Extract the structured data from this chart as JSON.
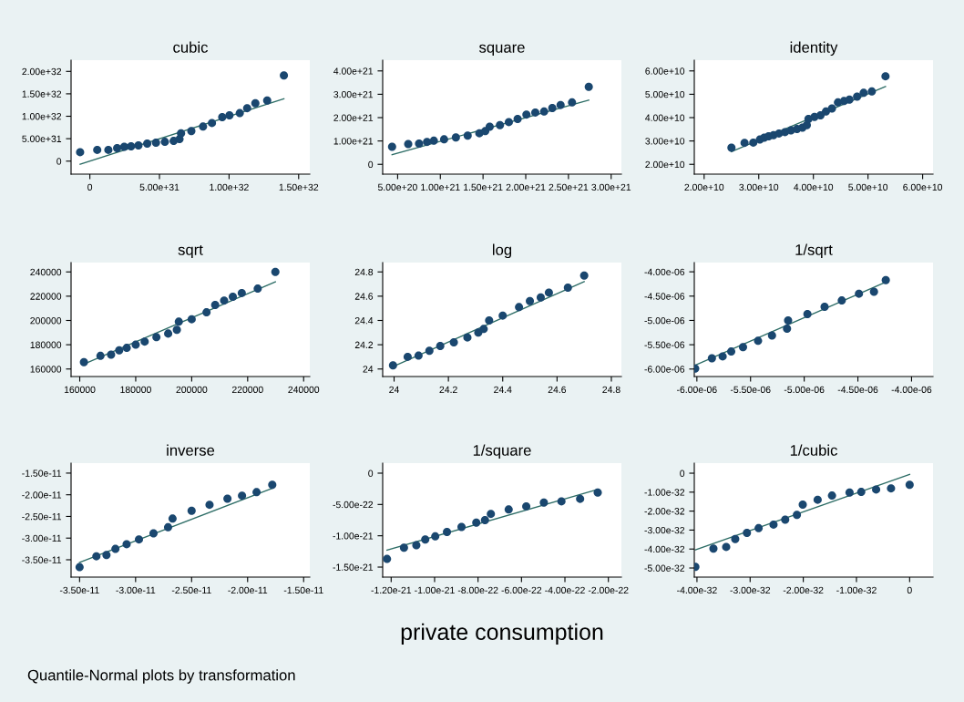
{
  "chart_data": [
    {
      "type": "scatter",
      "title": "cubic",
      "xlim": [
        -1.35e+31,
        1.58e+32
      ],
      "ylim": [
        -2.9e+31,
        2.25e+32
      ],
      "xticks": [
        0,
        {
          "value": 5e+31,
          "label": "5.00e+31"
        },
        {
          "value": 1e+32,
          "label": "1.00e+32"
        },
        {
          "value": 1.5e+32,
          "label": "1.50e+32"
        }
      ],
      "yticks": [
        0,
        {
          "value": 5e+31,
          "label": "5.00e+31"
        },
        {
          "value": 1e+32,
          "label": "1.00e+32"
        },
        {
          "value": 1.5e+32,
          "label": "1.50e+32"
        },
        {
          "value": 2e+32,
          "label": "2.00e+32"
        }
      ],
      "series": [
        {
          "marker": "circle",
          "color": "#1a476f",
          "x": [
            -7e+30,
            5.3e+30,
            1.33e+31,
            1.96e+31,
            2.47e+31,
            2.96e+31,
            3.49e+31,
            4.12e+31,
            4.75e+31,
            5.39e+31,
            6.02e+31,
            6.44e+31,
            6.55e+31,
            7.29e+31,
            8.13e+31,
            8.77e+31,
            9.51e+31,
            1.003e+32,
            1.077e+32,
            1.13e+32,
            1.189e+32,
            1.274e+32,
            1.394e+32
          ],
          "values": [
            2e+31,
            2.5e+31,
            2.5e+31,
            2.9e+31,
            3.2e+31,
            3.3e+31,
            3.5e+31,
            3.9e+31,
            4.1e+31,
            4.3e+31,
            4.5e+31,
            4.9e+31,
            6.2e+31,
            6.7e+31,
            7.7e+31,
            8.5e+31,
            9.8e+31,
            1.02e+32,
            1.07e+32,
            1.18e+32,
            1.29e+32,
            1.35e+32,
            1.91e+32
          ]
        },
        {
          "type": "line",
          "color": "#2d6d66",
          "x": [
            -7e+30,
            1.394e+32
          ],
          "values": [
            -7e+30,
            1.39e+32
          ]
        }
      ]
    },
    {
      "type": "scatter",
      "title": "square",
      "xlim": [
        3.25e+20,
        3.12e+21
      ],
      "ylim": [
        -4.2e+20,
        4.46e+21
      ],
      "xticks": [
        {
          "value": 5e+20,
          "label": "5.00e+20"
        },
        {
          "value": 1e+21,
          "label": "1.00e+21"
        },
        {
          "value": 1.5e+21,
          "label": "1.50e+21"
        },
        {
          "value": 2e+21,
          "label": "2.00e+21"
        },
        {
          "value": 2.5e+21,
          "label": "2.50e+21"
        },
        {
          "value": 3e+21,
          "label": "3.00e+21"
        }
      ],
      "yticks": [
        0,
        {
          "value": 1e+21,
          "label": "1.00e+21"
        },
        {
          "value": 2e+21,
          "label": "2.00e+21"
        },
        {
          "value": 3e+21,
          "label": "3.00e+21"
        },
        {
          "value": 4e+21,
          "label": "4.00e+21"
        }
      ],
      "series": [
        {
          "marker": "circle",
          "color": "#1a476f",
          "x": [
            4.35e+20,
            6.24e+20,
            7.51e+20,
            8.44e+20,
            9.24e+20,
            1.044e+21,
            1.182e+21,
            1.32e+21,
            1.457e+21,
            1.526e+21,
            1.578e+21,
            1.698e+21,
            1.802e+21,
            1.905e+21,
            2.008e+21,
            2.112e+21,
            2.215e+21,
            2.311e+21,
            2.408e+21,
            2.542e+21,
            2.738e+21
          ],
          "values": [
            7.5e+20,
            8.7e+20,
            8.9e+20,
            9.6e+20,
            1.01e+21,
            1.07e+21,
            1.15e+21,
            1.23e+21,
            1.33e+21,
            1.42e+21,
            1.61e+21,
            1.68e+21,
            1.81e+21,
            1.94e+21,
            2.13e+21,
            2.22e+21,
            2.26e+21,
            2.41e+21,
            2.54e+21,
            2.65e+21,
            3.32e+21
          ]
        },
        {
          "type": "line",
          "color": "#2d6d66",
          "x": [
            4.35e+20,
            2.738e+21
          ],
          "values": [
            4.1e+20,
            2.75e+21
          ]
        }
      ]
    },
    {
      "type": "scatter",
      "title": "identity",
      "xlim": [
        18200000000.0,
        61900000000.0
      ],
      "ylim": [
        15800000000.0,
        64600000000.0
      ],
      "xticks": [
        {
          "value": 20000000000.0,
          "label": "2.00e+10"
        },
        {
          "value": 30000000000.0,
          "label": "3.00e+10"
        },
        {
          "value": 40000000000.0,
          "label": "4.00e+10"
        },
        {
          "value": 50000000000.0,
          "label": "5.00e+10"
        },
        {
          "value": 60000000000.0,
          "label": "6.00e+10"
        }
      ],
      "yticks": [
        {
          "value": 20000000000.0,
          "label": "2.00e+10"
        },
        {
          "value": 30000000000.0,
          "label": "3.00e+10"
        },
        {
          "value": 40000000000.0,
          "label": "4.00e+10"
        },
        {
          "value": 50000000000.0,
          "label": "5.00e+10"
        },
        {
          "value": 60000000000.0,
          "label": "6.00e+10"
        }
      ],
      "series": [
        {
          "marker": "circle",
          "color": "#1a476f",
          "x": [
            25000000000.0,
            27400000000.0,
            29000000000.0,
            30200000000.0,
            31000000000.0,
            31800000000.0,
            32700000000.0,
            33700000000.0,
            34800000000.0,
            35900000000.0,
            37000000000.0,
            38000000000.0,
            38800000000.0,
            39100000000.0,
            40200000000.0,
            41300000000.0,
            42300000000.0,
            43400000000.0,
            44500000000.0,
            45600000000.0,
            46600000000.0,
            48000000000.0,
            49200000000.0,
            50700000000.0,
            53200000000.0
          ],
          "values": [
            27100000000.0,
            29200000000.0,
            29300000000.0,
            30600000000.0,
            31400000000.0,
            32000000000.0,
            32500000000.0,
            33200000000.0,
            33800000000.0,
            34500000000.0,
            35100000000.0,
            35700000000.0,
            36800000000.0,
            39400000000.0,
            40300000000.0,
            41000000000.0,
            42600000000.0,
            43900000000.0,
            46500000000.0,
            47100000000.0,
            47700000000.0,
            49000000000.0,
            50600000000.0,
            51200000000.0,
            57700000000.0
          ]
        },
        {
          "type": "line",
          "color": "#2d6d66",
          "x": [
            25000000000.0,
            53200000000.0
          ],
          "values": [
            25400000000.0,
            53300000000.0
          ]
        }
      ]
    },
    {
      "type": "scatter",
      "title": "sqrt",
      "xlim": [
        156900,
        242200
      ],
      "ylim": [
        153800,
        247700
      ],
      "xticks": [
        160000,
        180000,
        200000,
        220000,
        240000
      ],
      "yticks": [
        160000,
        180000,
        200000,
        220000,
        240000
      ],
      "series": [
        {
          "marker": "circle",
          "color": "#1a476f",
          "x": [
            161500,
            167400,
            171200,
            174100,
            176800,
            180000,
            183200,
            187400,
            191600,
            194700,
            195400,
            200000,
            205300,
            208400,
            211600,
            214700,
            217900,
            223600,
            229900
          ],
          "values": [
            165600,
            170800,
            171800,
            175400,
            177400,
            180000,
            182600,
            186200,
            189200,
            192300,
            199000,
            201000,
            206700,
            212800,
            216400,
            219500,
            222600,
            226200,
            240000
          ]
        },
        {
          "type": "line",
          "color": "#2d6d66",
          "x": [
            161500,
            229900
          ],
          "values": [
            164100,
            231800
          ]
        }
      ]
    },
    {
      "type": "scatter",
      "title": "log",
      "xlim": [
        23.958,
        24.837
      ],
      "ylim": [
        23.938,
        24.877
      ],
      "xticks": [
        24,
        24.2,
        24.4,
        24.6,
        24.8
      ],
      "yticks": [
        24,
        24.2,
        24.4,
        24.6,
        24.8
      ],
      "series": [
        {
          "marker": "circle",
          "color": "#1a476f",
          "x": [
            23.996,
            24.05,
            24.09,
            24.13,
            24.17,
            24.22,
            24.27,
            24.31,
            24.33,
            24.35,
            24.4,
            24.46,
            24.5,
            24.54,
            24.57,
            24.64,
            24.7
          ],
          "values": [
            24.03,
            24.1,
            24.11,
            24.15,
            24.19,
            24.22,
            24.26,
            24.3,
            24.33,
            24.4,
            24.44,
            24.51,
            24.56,
            24.59,
            24.63,
            24.67,
            24.77
          ]
        },
        {
          "type": "line",
          "color": "#2d6d66",
          "x": [
            23.996,
            24.7
          ],
          "values": [
            24.02,
            24.72
          ]
        }
      ]
    },
    {
      "type": "scatter",
      "title": "1/sqrt",
      "xlim": [
        -6.024e-06,
        -3.8e-06
      ],
      "ylim": [
        -6.154e-06,
        -3.81e-06
      ],
      "xticks": [
        {
          "value": -6e-06,
          "label": "-6.00e-06"
        },
        {
          "value": -5.5e-06,
          "label": "-5.50e-06"
        },
        {
          "value": -5e-06,
          "label": "-5.00e-06"
        },
        {
          "value": -4.5e-06,
          "label": "-4.50e-06"
        },
        {
          "value": -4e-06,
          "label": "-4.00e-06"
        }
      ],
      "yticks": [
        {
          "value": -6e-06,
          "label": "-6.00e-06"
        },
        {
          "value": -5.5e-06,
          "label": "-5.50e-06"
        },
        {
          "value": -5e-06,
          "label": "-5.00e-06"
        },
        {
          "value": -4.5e-06,
          "label": "-4.50e-06"
        },
        {
          "value": -4e-06,
          "label": "-4.00e-06"
        }
      ],
      "series": [
        {
          "marker": "circle",
          "color": "#1a476f",
          "x": [
            -6.016e-06,
            -5.86e-06,
            -5.76e-06,
            -5.68e-06,
            -5.57e-06,
            -5.43e-06,
            -5.3e-06,
            -5.16e-06,
            -5.15e-06,
            -4.97e-06,
            -4.81e-06,
            -4.65e-06,
            -4.49e-06,
            -4.35e-06,
            -4.24e-06
          ],
          "values": [
            -5.99e-06,
            -5.78e-06,
            -5.74e-06,
            -5.64e-06,
            -5.55e-06,
            -5.42e-06,
            -5.31e-06,
            -5.17e-06,
            -5e-06,
            -4.87e-06,
            -4.72e-06,
            -4.59e-06,
            -4.45e-06,
            -4.41e-06,
            -4.17e-06
          ]
        },
        {
          "type": "line",
          "color": "#2d6d66",
          "x": [
            -6.016e-06,
            -4.24e-06
          ],
          "values": [
            -5.92e-06,
            -4.21e-06
          ]
        }
      ]
    },
    {
      "type": "scatter",
      "title": "inverse",
      "xlim": [
        -3.576e-11,
        -1.445e-11
      ],
      "ylim": [
        -3.9e-11,
        -1.27e-11
      ],
      "xticks": [
        {
          "value": -3.5e-11,
          "label": "-3.50e-11"
        },
        {
          "value": -3e-11,
          "label": "-3.00e-11"
        },
        {
          "value": -2.5e-11,
          "label": "-2.50e-11"
        },
        {
          "value": -2e-11,
          "label": "-2.00e-11"
        },
        {
          "value": -1.5e-11,
          "label": "-1.50e-11"
        }
      ],
      "yticks": [
        {
          "value": -3.5e-11,
          "label": "-3.50e-11"
        },
        {
          "value": -3e-11,
          "label": "-3.00e-11"
        },
        {
          "value": -2.5e-11,
          "label": "-2.50e-11"
        },
        {
          "value": -2e-11,
          "label": "-2.00e-11"
        },
        {
          "value": -1.5e-11,
          "label": "-1.50e-11"
        }
      ],
      "annotations": [
        "Quantile-Normal plots by transformation"
      ],
      "series": [
        {
          "marker": "circle",
          "color": "#1a476f",
          "x": [
            -3.5e-11,
            -3.35e-11,
            -3.26e-11,
            -3.18e-11,
            -3.08e-11,
            -2.97e-11,
            -2.84e-11,
            -2.71e-11,
            -2.67e-11,
            -2.5e-11,
            -2.34e-11,
            -2.18e-11,
            -2.05e-11,
            -1.92e-11,
            -1.78e-11
          ],
          "values": [
            -3.67e-11,
            -3.42e-11,
            -3.39e-11,
            -3.25e-11,
            -3.14e-11,
            -3.03e-11,
            -2.89e-11,
            -2.75e-11,
            -2.55e-11,
            -2.37e-11,
            -2.23e-11,
            -2.09e-11,
            -2.02e-11,
            -1.94e-11,
            -1.77e-11
          ]
        },
        {
          "type": "line",
          "color": "#2d6d66",
          "x": [
            -3.5e-11,
            -1.78e-11
          ],
          "values": [
            -3.56e-11,
            -1.85e-11
          ]
        }
      ]
    },
    {
      "type": "scatter",
      "title": "1/square",
      "xlabel": "private consumption",
      "xlim": [
        -1.239e-21,
        -1.4e-22
      ],
      "ylim": [
        -1.66e-21,
        1.6e-22
      ],
      "xticks": [
        {
          "value": -1.2e-21,
          "label": "-1.20e-21"
        },
        {
          "value": -1e-21,
          "label": "-1.00e-21"
        },
        {
          "value": -8e-22,
          "label": "-8.00e-22"
        },
        {
          "value": -6e-22,
          "label": "-6.00e-22"
        },
        {
          "value": -4e-22,
          "label": "-4.00e-22"
        },
        {
          "value": -2e-22,
          "label": "-2.00e-22"
        }
      ],
      "yticks": [
        {
          "value": -1.5e-21,
          "label": "-1.50e-21"
        },
        {
          "value": -1e-21,
          "label": "-1.00e-21"
        },
        {
          "value": -5e-22,
          "label": "-5.00e-22"
        },
        0
      ],
      "series": [
        {
          "marker": "circle",
          "color": "#1a476f",
          "x": [
            -1.219e-21,
            -1.141e-21,
            -1.084e-21,
            -1.043e-21,
            -9.97e-22,
            -9.43e-22,
            -8.76e-22,
            -8.08e-22,
            -7.68e-22,
            -7.41e-22,
            -6.59e-22,
            -5.78e-22,
            -4.97e-22,
            -4.16e-22,
            -3.3e-22,
            -2.49e-22
          ],
          "values": [
            -1.37e-21,
            -1.19e-21,
            -1.15e-21,
            -1.06e-21,
            -1.01e-21,
            -9.4e-22,
            -8.6e-22,
            -7.9e-22,
            -7.5e-22,
            -6.5e-22,
            -5.8e-22,
            -5.3e-22,
            -4.7e-22,
            -4.5e-22,
            -4.1e-22,
            -3.1e-22
          ]
        },
        {
          "type": "line",
          "color": "#2d6d66",
          "x": [
            -1.219e-21,
            -2.49e-22
          ],
          "values": [
            -1.23e-21,
            -2.6e-22
          ]
        }
      ]
    },
    {
      "type": "scatter",
      "title": "1/cubic",
      "xlim": [
        -4.05e-32,
        4.4e-33
      ],
      "ylim": [
        -5.48e-32,
        5.3e-33
      ],
      "xticks": [
        {
          "value": -4e-32,
          "label": "-4.00e-32"
        },
        {
          "value": -3e-32,
          "label": "-3.00e-32"
        },
        {
          "value": -2e-32,
          "label": "-2.00e-32"
        },
        {
          "value": -1e-32,
          "label": "-1.00e-32"
        },
        0
      ],
      "yticks": [
        {
          "value": -5e-32,
          "label": "-5.00e-32"
        },
        {
          "value": -4e-32,
          "label": "-4.00e-32"
        },
        {
          "value": -3e-32,
          "label": "-3.00e-32"
        },
        {
          "value": -2e-32,
          "label": "-2.00e-32"
        },
        {
          "value": -1e-32,
          "label": "-1.00e-32"
        },
        0
      ],
      "series": [
        {
          "marker": "circle",
          "color": "#1a476f",
          "x": [
            -4.03e-32,
            -3.69e-32,
            -3.45e-32,
            -3.28e-32,
            -3.06e-32,
            -2.84e-32,
            -2.56e-32,
            -2.34e-32,
            -2.12e-32,
            -2.01e-32,
            -1.73e-32,
            -1.46e-32,
            -1.13e-32,
            -9.1e-33,
            -6.3e-33,
            -3.5e-33,
            0.0
          ],
          "values": [
            -4.94e-32,
            -3.98e-32,
            -3.89e-32,
            -3.47e-32,
            -3.15e-32,
            -2.9e-32,
            -2.71e-32,
            -2.45e-32,
            -2.2e-32,
            -1.66e-32,
            -1.4e-32,
            -1.18e-32,
            -1.02e-32,
            -9.9e-33,
            -8.6e-33,
            -8e-33,
            -6.1e-33
          ]
        },
        {
          "type": "line",
          "color": "#2d6d66",
          "x": [
            -4.03e-32,
            0.0
          ],
          "values": [
            -4.04e-32,
            -6e-34
          ]
        }
      ]
    }
  ]
}
